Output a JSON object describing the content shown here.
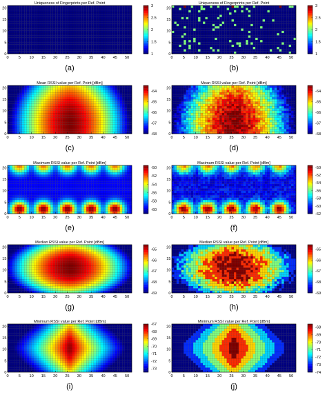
{
  "figure": {
    "axis_x_ticks": [
      0,
      5,
      10,
      15,
      20,
      25,
      30,
      35,
      40,
      45,
      50
    ],
    "axis_y_ticks": [
      0,
      5,
      10,
      15,
      20
    ]
  },
  "chart_data": [
    {
      "id": "a",
      "type": "heatmap",
      "caption": "(a)",
      "title": "Uniqueness of Fingerprints per Ref. Point",
      "pattern": "uniform",
      "clim": [
        1,
        3
      ],
      "colorbar_ticks": [
        "1",
        "1.5",
        "2",
        "2.5",
        "3"
      ],
      "colorbar_tick_values": [
        1,
        1.5,
        2,
        2.5,
        3
      ],
      "xlim": [
        0,
        52
      ],
      "ylim": [
        0,
        21
      ],
      "grid_nx": 52,
      "grid_ny": 21
    },
    {
      "id": "b",
      "type": "heatmap",
      "caption": "(b)",
      "title": "Uniqueness of Fingerprints per Ref. Point",
      "pattern": "sparse",
      "clim": [
        1,
        3
      ],
      "colorbar_ticks": [
        "1",
        "1.5",
        "2",
        "2.5",
        "3"
      ],
      "colorbar_tick_values": [
        1,
        1.5,
        2,
        2.5,
        3
      ],
      "xlim": [
        0,
        52
      ],
      "ylim": [
        0,
        21
      ],
      "grid_nx": 52,
      "grid_ny": 21
    },
    {
      "id": "c",
      "type": "heatmap",
      "caption": "(c)",
      "title": "Mean RSSI value per Ref. Point [dBm]",
      "pattern": "mean",
      "clim": [
        -68,
        -63.5
      ],
      "colorbar_ticks": [
        "-64",
        "-65",
        "-66",
        "-67",
        "-68"
      ],
      "colorbar_tick_values": [
        -64,
        -65,
        -66,
        -67,
        -68
      ],
      "xlim": [
        0,
        52
      ],
      "ylim": [
        0,
        21
      ],
      "grid_nx": 52,
      "grid_ny": 21
    },
    {
      "id": "d",
      "type": "heatmap",
      "caption": "(d)",
      "title": "Mean RSSI value per Ref. Point [dBm]",
      "pattern": "mean_noisy",
      "clim": [
        -68,
        -63.5
      ],
      "colorbar_ticks": [
        "-64",
        "-65",
        "-66",
        "-67",
        "-68"
      ],
      "colorbar_tick_values": [
        -64,
        -65,
        -66,
        -67,
        -68
      ],
      "xlim": [
        0,
        52
      ],
      "ylim": [
        0,
        21
      ],
      "grid_nx": 52,
      "grid_ny": 21
    },
    {
      "id": "e",
      "type": "heatmap",
      "caption": "(e)",
      "title": "Maximum RSSI value per Ref. Point [dBm]",
      "pattern": "max",
      "clim": [
        -61,
        -49.5
      ],
      "colorbar_ticks": [
        "-50",
        "-52",
        "-54",
        "-56",
        "-58",
        "-60"
      ],
      "colorbar_tick_values": [
        -50,
        -52,
        -54,
        -56,
        -58,
        -60
      ],
      "xlim": [
        0,
        52
      ],
      "ylim": [
        0,
        21
      ],
      "grid_nx": 52,
      "grid_ny": 21
    },
    {
      "id": "f",
      "type": "heatmap",
      "caption": "(f)",
      "title": "Maximum RSSI value per Ref. Point [dBm]",
      "pattern": "max_noisy",
      "clim": [
        -62,
        -49.5
      ],
      "colorbar_ticks": [
        "-50",
        "-52",
        "-54",
        "-56",
        "-58",
        "-60",
        "-62"
      ],
      "colorbar_tick_values": [
        -50,
        -52,
        -54,
        -56,
        -58,
        -60,
        -62
      ],
      "xlim": [
        0,
        52
      ],
      "ylim": [
        0,
        21
      ],
      "grid_nx": 52,
      "grid_ny": 21
    },
    {
      "id": "g",
      "type": "heatmap",
      "caption": "(g)",
      "title": "Median RSSI value per Ref. Point [dBm]",
      "pattern": "median",
      "clim": [
        -69,
        -64.6
      ],
      "colorbar_ticks": [
        "-65",
        "-66",
        "-67",
        "-68",
        "-69"
      ],
      "colorbar_tick_values": [
        -65,
        -66,
        -67,
        -68,
        -69
      ],
      "xlim": [
        0,
        52
      ],
      "ylim": [
        0,
        21
      ],
      "grid_nx": 52,
      "grid_ny": 21
    },
    {
      "id": "h",
      "type": "heatmap",
      "caption": "(h)",
      "title": "Median RSSI value per Ref. Point [dBm]",
      "pattern": "median_noisy",
      "clim": [
        -69,
        -64.6
      ],
      "colorbar_ticks": [
        "-65",
        "-66",
        "-67",
        "-68",
        "-69"
      ],
      "colorbar_tick_values": [
        -65,
        -66,
        -67,
        -68,
        -69
      ],
      "xlim": [
        0,
        52
      ],
      "ylim": [
        0,
        21
      ],
      "grid_nx": 52,
      "grid_ny": 21
    },
    {
      "id": "i",
      "type": "heatmap",
      "caption": "(i)",
      "title": "Minimum RSSI value per Ref. Point [dBm]",
      "pattern": "min",
      "clim": [
        -73.5,
        -67
      ],
      "colorbar_ticks": [
        "-67",
        "-68",
        "-69",
        "-70",
        "-71",
        "-72",
        "-73"
      ],
      "colorbar_tick_values": [
        -67,
        -68,
        -69,
        -70,
        -71,
        -72,
        -73
      ],
      "xlim": [
        0,
        52
      ],
      "ylim": [
        0,
        21
      ],
      "grid_nx": 52,
      "grid_ny": 21
    },
    {
      "id": "j",
      "type": "heatmap",
      "caption": "(j)",
      "title": "Minimum RSSI value per Ref. Point [dBm]",
      "pattern": "min_noisy",
      "clim": [
        -74,
        -67.6
      ],
      "colorbar_ticks": [
        "-68",
        "-69",
        "-70",
        "-71",
        "-72",
        "-73",
        "-74"
      ],
      "colorbar_tick_values": [
        -68,
        -69,
        -70,
        -71,
        -72,
        -73,
        -74
      ],
      "xlim": [
        0,
        52
      ],
      "ylim": [
        0,
        21
      ],
      "grid_nx": 52,
      "grid_ny": 21
    }
  ]
}
